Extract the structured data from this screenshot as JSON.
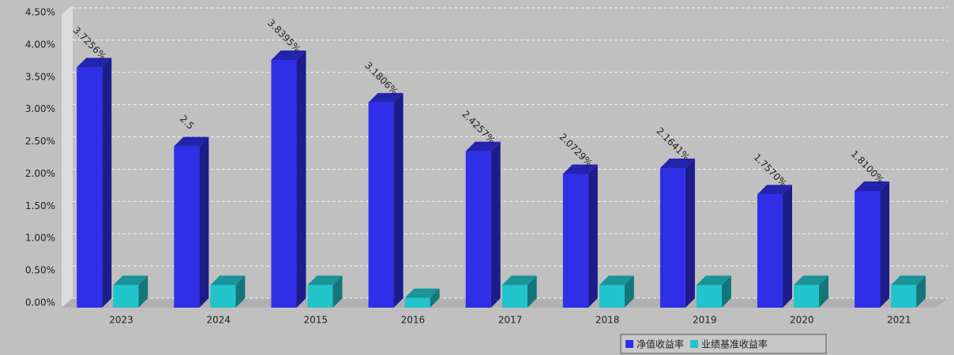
{
  "chart_data": {
    "type": "bar3d",
    "categories": [
      "2023",
      "2024",
      "2015",
      "2016",
      "2017",
      "2018",
      "2019",
      "2020",
      "2021"
    ],
    "series": [
      {
        "name": "净值收益率",
        "color": "#2f2fe8",
        "values": [
          3.7256,
          2.5,
          3.8395,
          3.1806,
          2.4257,
          2.0729,
          2.1641,
          1.757,
          1.81
        ],
        "value_labels": [
          "3.7256%",
          "2.5",
          "3.8395%",
          "3.1806%",
          "2.4257%",
          "2.0729%",
          "2.1641%",
          "1.7570%",
          "1.8100%"
        ]
      },
      {
        "name": "业绩基准收益率",
        "color": "#22c4cc",
        "values": [
          0.35,
          0.35,
          0.35,
          0.15,
          0.35,
          0.35,
          0.35,
          0.35,
          0.35
        ]
      }
    ],
    "ylim": [
      0,
      4.5
    ],
    "yticks": [
      {
        "value": 0,
        "label": "0.00%"
      },
      {
        "value": 0.5,
        "label": "0.50%"
      },
      {
        "value": 1,
        "label": "1.00%"
      },
      {
        "value": 1.5,
        "label": "1.50%"
      },
      {
        "value": 2,
        "label": "2.00%"
      },
      {
        "value": 2.5,
        "label": "2.50%"
      },
      {
        "value": 3,
        "label": "3.00%"
      },
      {
        "value": 3.5,
        "label": "3.50%"
      },
      {
        "value": 4,
        "label": "4.00%"
      },
      {
        "value": 4.5,
        "label": "4.50%"
      }
    ],
    "grid": true,
    "legend": "bottom-right"
  }
}
